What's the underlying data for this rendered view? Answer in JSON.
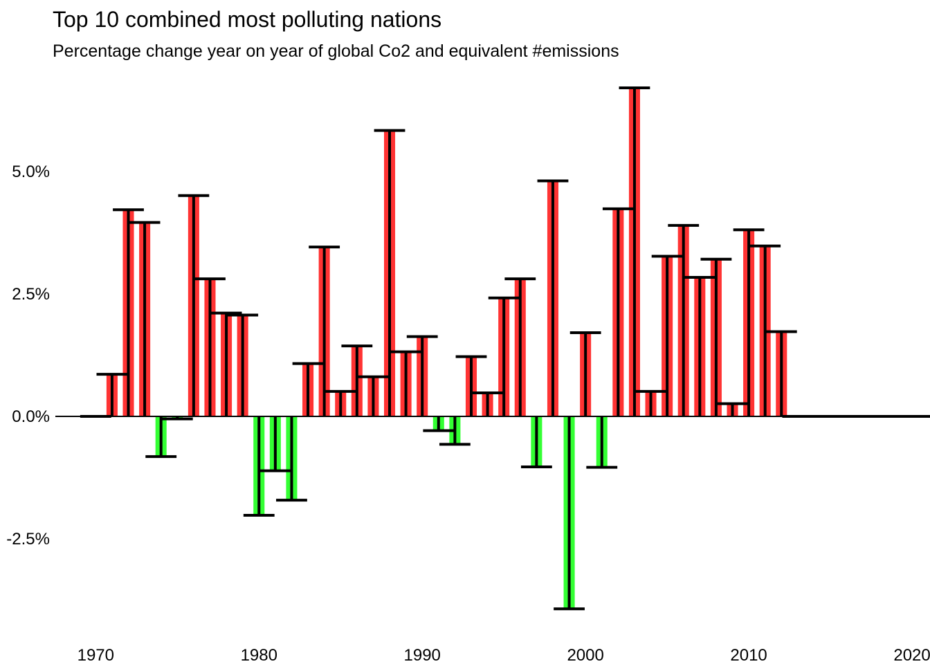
{
  "chart_data": {
    "type": "bar",
    "title": "Top 10 combined most polluting nations",
    "subtitle": "Percentage change year on year of global Co2 and equivalent #emissions",
    "xlabel": "",
    "ylabel": "",
    "x_ticks": [
      "1970",
      "1980",
      "1990",
      "2000",
      "2010",
      "2020"
    ],
    "y_ticks": [
      "-2.5%",
      "0.0%",
      "2.5%",
      "5.0%"
    ],
    "y_tick_values": [
      -2.5,
      0.0,
      2.5,
      5.0
    ],
    "x_tick_values": [
      1970,
      1980,
      1990,
      2000,
      2010,
      2020
    ],
    "xlim": [
      1968.8,
      2021.1
    ],
    "ylim": [
      -4.35,
      6.95
    ],
    "grid": false,
    "legend": "none",
    "colors": {
      "positive": "#ff3333",
      "negative": "#33ff33",
      "errorbar": "#000000",
      "baseline": "#000000"
    },
    "years": [
      1970,
      1971,
      1972,
      1973,
      1974,
      1975,
      1976,
      1977,
      1978,
      1979,
      1980,
      1981,
      1982,
      1983,
      1984,
      1985,
      1986,
      1987,
      1988,
      1989,
      1990,
      1991,
      1992,
      1993,
      1994,
      1995,
      1996,
      1997,
      1998,
      1999,
      2000,
      2001,
      2002,
      2003,
      2004,
      2005,
      2006,
      2007,
      2008,
      2009,
      2010,
      2011,
      2012,
      2013,
      2014,
      2015,
      2016,
      2017,
      2018,
      2019,
      2020,
      2021
    ],
    "values": [
      0.0,
      0.86,
      4.22,
      3.96,
      -0.82,
      -0.05,
      4.51,
      2.81,
      2.11,
      2.07,
      -2.02,
      -1.11,
      -1.71,
      1.08,
      3.46,
      0.51,
      1.44,
      0.81,
      5.84,
      1.32,
      1.63,
      -0.29,
      -0.57,
      1.22,
      0.48,
      2.42,
      2.81,
      -1.03,
      4.81,
      -3.93,
      1.71,
      -1.04,
      4.24,
      6.71,
      0.51,
      3.27,
      3.9,
      2.84,
      3.21,
      0.26,
      3.81,
      3.48,
      1.73,
      0.0,
      0.0,
      0.0,
      0.0,
      0.0,
      0.0,
      0.0,
      0.0,
      0.0
    ]
  }
}
